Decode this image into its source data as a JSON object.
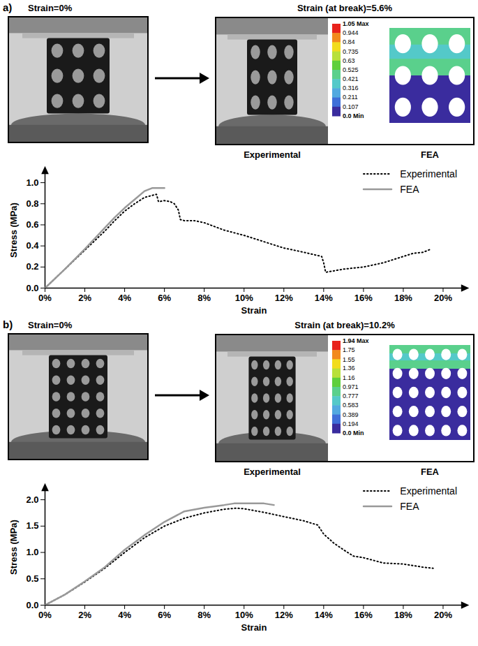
{
  "chart_data": [
    {
      "type": "line",
      "title": "a)",
      "annotations": {
        "before": "Strain=0%",
        "after": "Strain (at break)=5.6%",
        "photo": "Experimental",
        "model": "FEA"
      },
      "colorbar": {
        "range": [
          0,
          1.05
        ],
        "ticks": [
          {
            "value": 1.05,
            "label": "1.05 Max"
          },
          0.944,
          0.84,
          0.735,
          0.63,
          0.525,
          0.421,
          0.316,
          0.211,
          0.107,
          {
            "value": 0,
            "label": "0.0 Min"
          }
        ]
      },
      "x_label": "Strain",
      "y_label": "Stress (MPa)",
      "xlim": [
        0,
        21
      ],
      "xticks": [
        {
          "value": 0,
          "label": "0%"
        },
        {
          "value": 2,
          "label": "2%"
        },
        {
          "value": 4,
          "label": "4%"
        },
        {
          "value": 6,
          "label": "6%"
        },
        {
          "value": 8,
          "label": "8%"
        },
        {
          "value": 10,
          "label": "10%"
        },
        {
          "value": 12,
          "label": "12%"
        },
        {
          "value": 14,
          "label": "14%"
        },
        {
          "value": 16,
          "label": "16%"
        },
        {
          "value": 18,
          "label": "18%"
        },
        {
          "value": 20,
          "label": "20%"
        }
      ],
      "ylim": [
        0,
        1.1
      ],
      "yticks": [
        {
          "value": 0,
          "label": "0.0"
        },
        0.2,
        0.4,
        0.6,
        0.8,
        {
          "value": 1,
          "label": "1.0"
        }
      ],
      "legend": "top-right",
      "series": [
        {
          "name": "Experimental",
          "color": "#000000",
          "line_style": "dotted",
          "x": [
            0,
            1,
            2,
            3,
            3.5,
            4,
            4.5,
            5,
            5.4,
            5.6,
            5.7,
            6,
            6.3,
            6.5,
            6.7,
            6.8,
            7,
            7.5,
            8,
            9,
            10,
            11,
            12,
            13,
            13.9,
            14,
            14.1,
            15,
            16,
            17,
            18,
            18.5,
            19,
            19.4
          ],
          "values": [
            0,
            0.18,
            0.36,
            0.54,
            0.64,
            0.73,
            0.8,
            0.86,
            0.88,
            0.89,
            0.82,
            0.83,
            0.82,
            0.8,
            0.74,
            0.65,
            0.64,
            0.64,
            0.62,
            0.55,
            0.5,
            0.44,
            0.38,
            0.34,
            0.3,
            0.24,
            0.15,
            0.18,
            0.2,
            0.24,
            0.3,
            0.33,
            0.34,
            0.37
          ]
        },
        {
          "name": "FEA",
          "color": "#999999",
          "line_style": "solid",
          "x": [
            0,
            1,
            2,
            3,
            3.5,
            4,
            4.5,
            5,
            5.4,
            6
          ],
          "values": [
            0,
            0.18,
            0.37,
            0.57,
            0.67,
            0.76,
            0.84,
            0.92,
            0.95,
            0.95
          ]
        }
      ]
    },
    {
      "type": "line",
      "title": "b)",
      "annotations": {
        "before": "Strain=0%",
        "after": "Strain (at break)=10.2%",
        "photo": "Experimental",
        "model": "FEA"
      },
      "colorbar": {
        "range": [
          0,
          1.94
        ],
        "ticks": [
          {
            "value": 1.94,
            "label": "1.94 Max"
          },
          1.75,
          1.55,
          1.36,
          1.16,
          0.971,
          0.777,
          0.583,
          0.389,
          0.194,
          {
            "value": 0,
            "label": "0.0 Min"
          }
        ]
      },
      "x_label": "Strain",
      "y_label": "Stress (MPa)",
      "xlim": [
        0,
        21
      ],
      "xticks": [
        {
          "value": 0,
          "label": "0%"
        },
        {
          "value": 2,
          "label": "2%"
        },
        {
          "value": 4,
          "label": "4%"
        },
        {
          "value": 6,
          "label": "6%"
        },
        {
          "value": 8,
          "label": "8%"
        },
        {
          "value": 10,
          "label": "10%"
        },
        {
          "value": 12,
          "label": "12%"
        },
        {
          "value": 14,
          "label": "14%"
        },
        {
          "value": 16,
          "label": "16%"
        },
        {
          "value": 18,
          "label": "18%"
        },
        {
          "value": 20,
          "label": "20%"
        }
      ],
      "ylim": [
        0,
        2.2
      ],
      "yticks": [
        {
          "value": 0,
          "label": "0.0"
        },
        0.5,
        {
          "value": 1,
          "label": "1.0"
        },
        1.5,
        {
          "value": 2,
          "label": "2.0"
        }
      ],
      "legend": "top-right",
      "series": [
        {
          "name": "Experimental",
          "color": "#000000",
          "line_style": "dotted",
          "x": [
            0,
            1,
            2,
            3,
            4,
            5,
            6,
            7,
            8,
            9,
            9.6,
            10,
            11,
            12,
            13,
            13.7,
            14,
            14.5,
            15,
            15.5,
            16,
            16.5,
            17,
            18,
            19,
            19.5
          ],
          "values": [
            0,
            0.2,
            0.44,
            0.7,
            1.0,
            1.28,
            1.5,
            1.65,
            1.75,
            1.82,
            1.84,
            1.83,
            1.76,
            1.68,
            1.6,
            1.52,
            1.35,
            1.18,
            1.05,
            0.93,
            0.9,
            0.85,
            0.8,
            0.78,
            0.72,
            0.7
          ]
        },
        {
          "name": "FEA",
          "color": "#999999",
          "line_style": "solid",
          "x": [
            0,
            1,
            2,
            3,
            4,
            5,
            6,
            7,
            8,
            9,
            9.5,
            10.5,
            11,
            11.5
          ],
          "values": [
            0,
            0.2,
            0.45,
            0.72,
            1.05,
            1.33,
            1.58,
            1.78,
            1.85,
            1.9,
            1.93,
            1.93,
            1.93,
            1.9
          ]
        }
      ]
    }
  ]
}
